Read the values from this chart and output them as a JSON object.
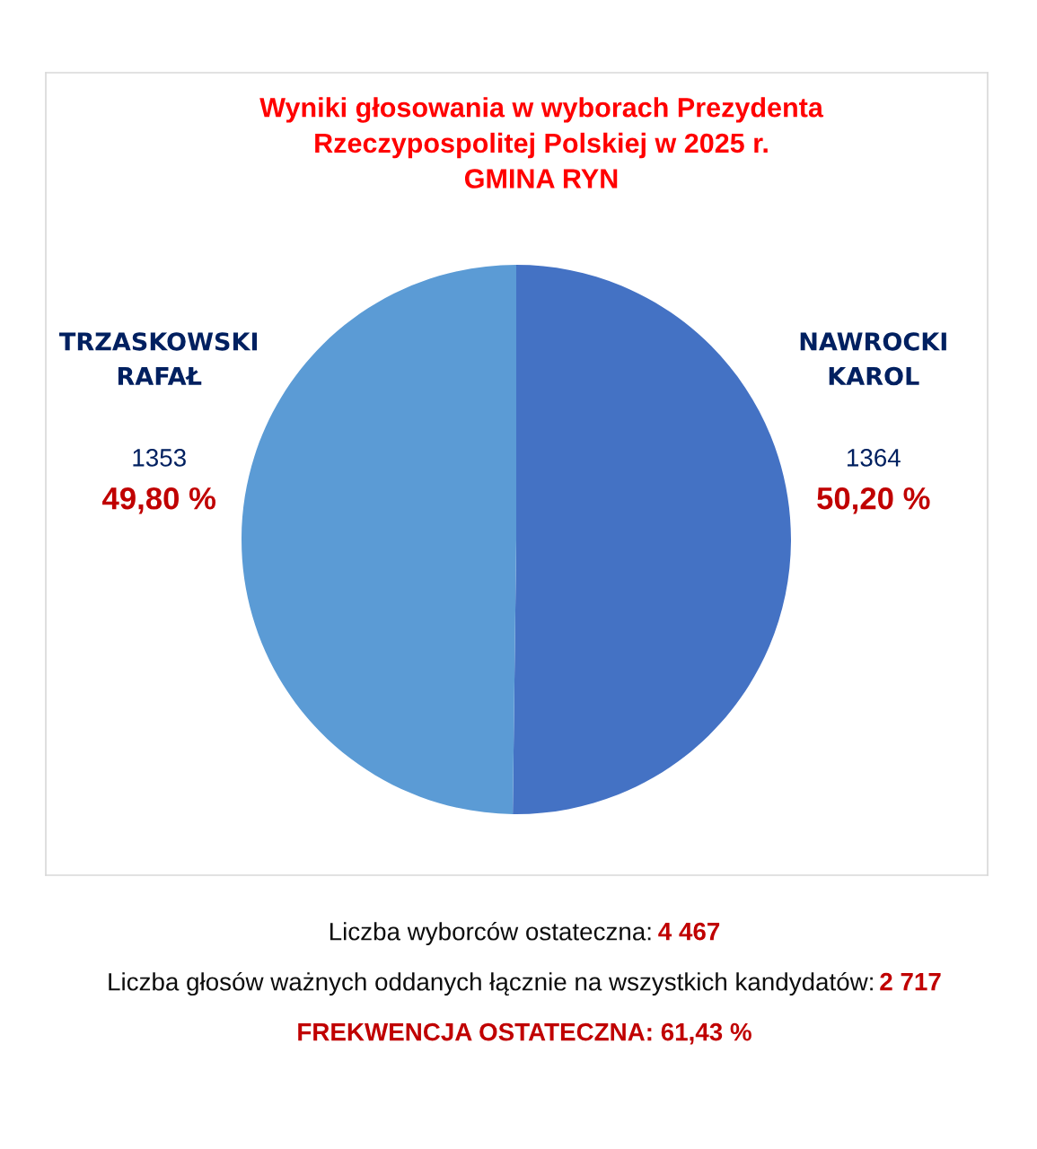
{
  "chart_data": {
    "type": "pie",
    "title": "Wyniki głosowania w wyborach Prezydenta\nRzeczypospolitej Polskiej w 2025 r.\nGMINA RYN",
    "categories": [
      "NAWROCKI\nKAROL",
      "TRZASKOWSKI\nRAFAŁ"
    ],
    "values": [
      1364,
      1353
    ],
    "colors": [
      "#4472c4",
      "#5b9bd5"
    ],
    "data_labels": true,
    "annotations": [
      {
        "text": "50,20 %",
        "x": "NAWROCKI\nKAROL"
      },
      {
        "text": "49,80 %",
        "x": "TRZASKOWSKI\nRAFAŁ"
      },
      "Liczba wyborców ostateczna: 4 467",
      "Liczba głosów ważnych oddanych łącznie na wszystkich kandydatów: 2 717",
      "FREKWENCJA OSTATECZNA: 61,43 %"
    ]
  }
}
